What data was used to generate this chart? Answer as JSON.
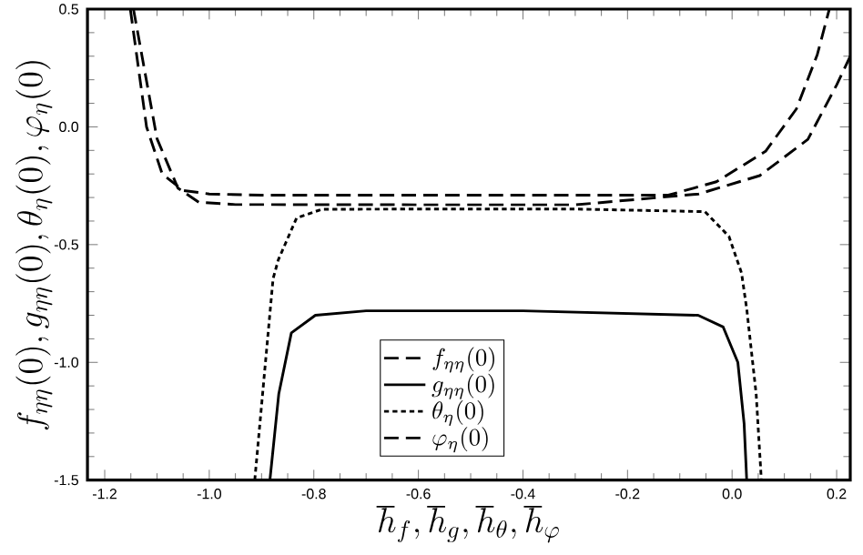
{
  "chart_data": {
    "type": "line",
    "xlabel": "\\hbar_f,\\hbar_g,\\hbar_\\theta,\\hbar_\\varphi",
    "ylabel": "f_{\\eta\\eta}(0),g_{\\eta\\eta}(0),\\theta_\\eta(0),\\varphi_\\eta(0)",
    "xlim": [
      -1.233,
      0.226
    ],
    "ylim": [
      -1.5,
      0.5
    ],
    "xticks": [
      -1.2,
      {
        "value": -1,
        "label": "-1.0"
      },
      -0.8,
      -0.6,
      -0.4,
      -0.2,
      {
        "value": 0,
        "label": "0.0"
      },
      0.2
    ],
    "yticks": [
      {
        "value": -1.5,
        "label": "-1.5"
      },
      {
        "value": -1,
        "label": "-1.0"
      },
      {
        "value": -0.5,
        "label": "-0.5"
      },
      {
        "value": 0,
        "label": "0.0"
      },
      {
        "value": 0.5,
        "label": "0.5"
      }
    ],
    "legend": "bottom",
    "grid": false,
    "series": [
      {
        "name": "f_{\\eta\\eta}(0)",
        "color": "#000000",
        "line_style": "dashed",
        "x": [
          -1.151,
          -1.12,
          -1.09,
          -1.05,
          -1.0,
          -0.9,
          -0.6,
          -0.3,
          -0.122,
          -0.03,
          0.064,
          0.123,
          0.163,
          0.186
        ],
        "values": [
          0.5,
          0.0,
          -0.2,
          -0.27,
          -0.285,
          -0.29,
          -0.29,
          -0.29,
          -0.29,
          -0.233,
          -0.104,
          0.076,
          0.307,
          0.5
        ]
      },
      {
        "name": "g_{\\eta\\eta}(0)",
        "color": "#000000",
        "line_style": "solid",
        "x": [
          -0.884,
          -0.867,
          -0.843,
          -0.797,
          -0.7,
          -0.4,
          -0.065,
          -0.017,
          0.011,
          0.023,
          0.028
        ],
        "values": [
          -1.5,
          -1.133,
          -0.875,
          -0.8,
          -0.781,
          -0.781,
          -0.8,
          -0.85,
          -1.0,
          -1.26,
          -1.5
        ]
      },
      {
        "name": "\\theta_\\eta(0)",
        "color": "#000000",
        "line_style": "dotted",
        "x": [
          -0.913,
          -0.878,
          -0.868,
          -0.833,
          -0.785,
          -0.6,
          -0.3,
          -0.052,
          -0.006,
          0.018,
          0.028,
          0.046,
          0.056
        ],
        "values": [
          -1.5,
          -0.645,
          -0.565,
          -0.387,
          -0.35,
          -0.349,
          -0.349,
          -0.36,
          -0.465,
          -0.62,
          -0.773,
          -1.133,
          -1.5
        ]
      },
      {
        "name": "\\varphi_\\eta(0)",
        "color": "#000000",
        "line_style": "dashed",
        "x": [
          -1.145,
          -1.1,
          -1.06,
          -1.02,
          -0.95,
          -0.6,
          -0.3,
          -0.064,
          0.053,
          0.145,
          0.2,
          0.226
        ],
        "values": [
          0.5,
          -0.05,
          -0.26,
          -0.32,
          -0.33,
          -0.331,
          -0.331,
          -0.285,
          -0.207,
          -0.053,
          0.178,
          0.3
        ]
      }
    ]
  }
}
